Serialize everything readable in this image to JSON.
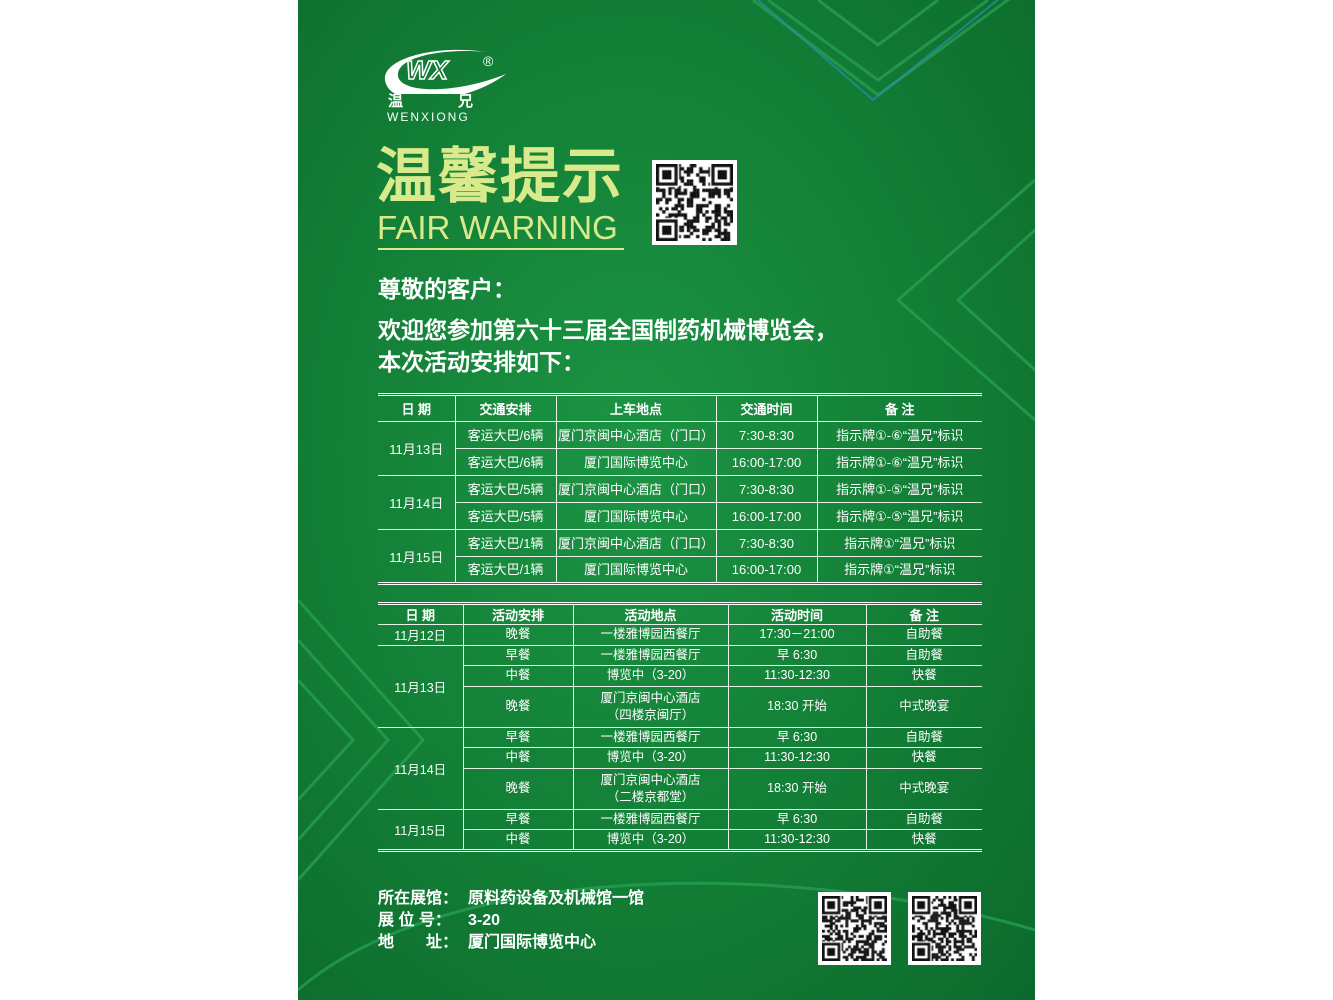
{
  "brand": {
    "logo_text": "WX",
    "registered_mark": "®",
    "name_cn_1": "温",
    "name_cn_2": "兄",
    "name_en": "WENXIONG"
  },
  "colors": {
    "background": "#148238",
    "title": "#d9ea8c",
    "text": "#ffffff"
  },
  "header": {
    "title_cn": "温馨提示",
    "title_en": "FAIR WARNING"
  },
  "greeting": "尊敬的客户：",
  "intro": [
    "欢迎您参加第六十三届全国制药机械博览会，",
    "本次活动安排如下："
  ],
  "transport_table": {
    "headers": [
      "日 期",
      "交通安排",
      "上车地点",
      "交通时间",
      "备 注"
    ],
    "groups": [
      {
        "date": "11月13日",
        "rows": [
          [
            "客运大巴/6辆",
            "厦门京闽中心酒店（门口）",
            "7:30-8:30",
            "指示牌①-⑥“温兄”标识"
          ],
          [
            "客运大巴/6辆",
            "厦门国际博览中心",
            "16:00-17:00",
            "指示牌①-⑥“温兄”标识"
          ]
        ]
      },
      {
        "date": "11月14日",
        "rows": [
          [
            "客运大巴/5辆",
            "厦门京闽中心酒店（门口）",
            "7:30-8:30",
            "指示牌①-⑤“温兄”标识"
          ],
          [
            "客运大巴/5辆",
            "厦门国际博览中心",
            "16:00-17:00",
            "指示牌①-⑤“温兄”标识"
          ]
        ]
      },
      {
        "date": "11月15日",
        "rows": [
          [
            "客运大巴/1辆",
            "厦门京闽中心酒店（门口）",
            "7:30-8:30",
            "指示牌①“温兄”标识"
          ],
          [
            "客运大巴/1辆",
            "厦门国际博览中心",
            "16:00-17:00",
            "指示牌①“温兄”标识"
          ]
        ]
      }
    ]
  },
  "activity_table": {
    "headers": [
      "日 期",
      "活动安排",
      "活动地点",
      "活动时间",
      "备 注"
    ],
    "groups": [
      {
        "date": "11月12日",
        "rows": [
          [
            "晚餐",
            "一楼雅博园西餐厅",
            "17:30－21:00",
            "自助餐"
          ]
        ]
      },
      {
        "date": "11月13日",
        "rows": [
          [
            "早餐",
            "一楼雅博园西餐厅",
            "早 6:30",
            "自助餐"
          ],
          [
            "中餐",
            "博览中（3-20）",
            "11:30-12:30",
            "快餐"
          ],
          [
            "晚餐",
            "厦门京闽中心酒店\n（四楼京闽厅）",
            "18:30 开始",
            "中式晚宴"
          ]
        ]
      },
      {
        "date": "11月14日",
        "rows": [
          [
            "早餐",
            "一楼雅博园西餐厅",
            "早 6:30",
            "自助餐"
          ],
          [
            "中餐",
            "博览中（3-20）",
            "11:30-12:30",
            "快餐"
          ],
          [
            "晚餐",
            "厦门京闽中心酒店\n（二楼京都堂）",
            "18:30 开始",
            "中式晚宴"
          ]
        ]
      },
      {
        "date": "11月15日",
        "rows": [
          [
            "早餐",
            "一楼雅博园西餐厅",
            "早 6:30",
            "自助餐"
          ],
          [
            "中餐",
            "博览中（3-20）",
            "11:30-12:30",
            "快餐"
          ]
        ]
      }
    ]
  },
  "footer": [
    {
      "label": "所在展馆：",
      "value": "原料药设备及机械馆一馆"
    },
    {
      "label": "展 位 号：",
      "value": "3-20"
    },
    {
      "label": "地　　址：",
      "value": "厦门国际博览中心"
    }
  ]
}
